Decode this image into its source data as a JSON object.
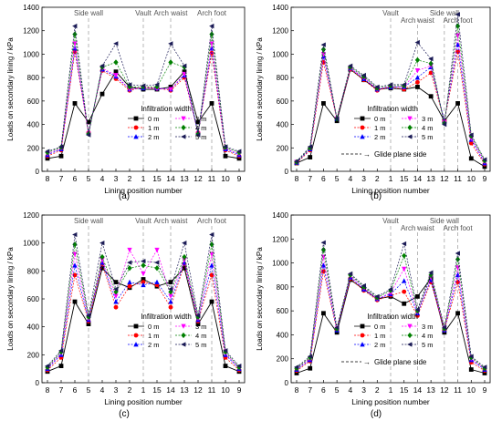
{
  "categories": [
    "8",
    "7",
    "6",
    "5",
    "4",
    "3",
    "2",
    "1",
    "15",
    "14",
    "13",
    "12",
    "11",
    "10",
    "9"
  ],
  "colors": {
    "0 m": "#000000",
    "1 m": "#ff0000",
    "2 m": "#0000ff",
    "3 m": "#ff00ff",
    "4 m": "#008000",
    "5 m": "#1a1a55"
  },
  "chart_data": [
    {
      "type": "line",
      "panel_label": "(a)",
      "xlabel": "Lining position number",
      "ylabel": "Loads on secondary lining / kPa",
      "ylim": [
        0,
        1400
      ],
      "yticks": [
        0,
        200,
        400,
        600,
        800,
        1000,
        1200,
        1400
      ],
      "categories": [
        "8",
        "7",
        "6",
        "5",
        "4",
        "3",
        "2",
        "1",
        "15",
        "14",
        "13",
        "12",
        "11",
        "10",
        "9"
      ],
      "legend_title": "Infiltration width",
      "legend_position": "bottom-center",
      "annotations": [
        {
          "text": "Side wall",
          "category": "5"
        },
        {
          "text": "Vault",
          "category": "1"
        },
        {
          "text": "Arch waist",
          "category": "14"
        },
        {
          "text": "Arch foot",
          "category": "11"
        }
      ],
      "series": [
        {
          "name": "0 m",
          "values": [
            110,
            130,
            580,
            420,
            660,
            850,
            720,
            700,
            700,
            720,
            850,
            420,
            580,
            130,
            110
          ]
        },
        {
          "name": "1 m",
          "values": [
            130,
            180,
            1020,
            330,
            860,
            790,
            690,
            720,
            710,
            690,
            800,
            330,
            1010,
            180,
            130
          ]
        },
        {
          "name": "2 m",
          "values": [
            140,
            190,
            1050,
            330,
            870,
            810,
            700,
            710,
            710,
            700,
            820,
            330,
            1050,
            190,
            140
          ]
        },
        {
          "name": "3 m",
          "values": [
            150,
            195,
            1090,
            320,
            880,
            820,
            700,
            715,
            705,
            700,
            830,
            320,
            1090,
            195,
            150
          ]
        },
        {
          "name": "4 m",
          "values": [
            160,
            205,
            1170,
            320,
            890,
            930,
            720,
            720,
            720,
            930,
            890,
            320,
            1170,
            205,
            160
          ]
        },
        {
          "name": "5 m",
          "values": [
            170,
            210,
            1240,
            310,
            900,
            1090,
            740,
            730,
            740,
            1090,
            900,
            310,
            1240,
            210,
            170
          ]
        }
      ]
    },
    {
      "type": "line",
      "panel_label": "(b)",
      "xlabel": "Lining position number",
      "ylabel": "Loads on secondary lining / kPa",
      "ylim": [
        0,
        1400
      ],
      "yticks": [
        0,
        200,
        400,
        600,
        800,
        1000,
        1200,
        1400
      ],
      "categories": [
        "8",
        "7",
        "6",
        "5",
        "4",
        "3",
        "2",
        "1",
        "15",
        "14",
        "13",
        "12",
        "11",
        "10",
        "9"
      ],
      "legend_title": "Infiltration width",
      "legend_position": "bottom-center",
      "extra_legend": "Glide plane side",
      "annotations": [
        {
          "text": "Vault",
          "category": "1"
        },
        {
          "text": "Arch waist",
          "category": "14"
        },
        {
          "text": "Side wall",
          "category": "12"
        },
        {
          "text": "Arch foot",
          "category": "11"
        }
      ],
      "series": [
        {
          "name": "0 m",
          "values": [
            70,
            120,
            580,
            430,
            870,
            780,
            700,
            710,
            700,
            720,
            640,
            430,
            580,
            110,
            40
          ]
        },
        {
          "name": "1 m",
          "values": [
            70,
            180,
            930,
            450,
            870,
            780,
            690,
            720,
            700,
            760,
            840,
            430,
            1020,
            240,
            60
          ]
        },
        {
          "name": "2 m",
          "values": [
            75,
            190,
            980,
            450,
            880,
            790,
            700,
            720,
            720,
            800,
            890,
            430,
            1080,
            270,
            70
          ]
        },
        {
          "name": "3 m",
          "values": [
            80,
            195,
            1000,
            450,
            880,
            800,
            700,
            725,
            720,
            860,
            900,
            420,
            1160,
            280,
            80
          ]
        },
        {
          "name": "4 m",
          "values": [
            80,
            200,
            1040,
            450,
            890,
            810,
            710,
            730,
            730,
            950,
            920,
            410,
            1240,
            300,
            90
          ]
        },
        {
          "name": "5 m",
          "values": [
            85,
            210,
            1080,
            450,
            900,
            820,
            720,
            740,
            740,
            1100,
            960,
            400,
            1340,
            310,
            100
          ]
        }
      ]
    },
    {
      "type": "line",
      "panel_label": "(c)",
      "xlabel": "Lining position number",
      "ylabel": "Loads on secondary lining / kPa",
      "ylim": [
        0,
        1200
      ],
      "yticks": [
        0,
        200,
        400,
        600,
        800,
        1000,
        1200
      ],
      "categories": [
        "8",
        "7",
        "6",
        "5",
        "4",
        "3",
        "2",
        "1",
        "15",
        "14",
        "13",
        "12",
        "11",
        "10",
        "9"
      ],
      "legend_title": "Infiltration width",
      "legend_position": "bottom-center",
      "annotations": [
        {
          "text": "Side wall",
          "category": "5"
        },
        {
          "text": "Vault",
          "category": "1"
        },
        {
          "text": "Arch waist",
          "category": "14"
        },
        {
          "text": "Arch foot",
          "category": "11"
        }
      ],
      "series": [
        {
          "name": "0 m",
          "values": [
            80,
            120,
            580,
            420,
            820,
            720,
            680,
            740,
            690,
            720,
            820,
            420,
            580,
            120,
            80
          ]
        },
        {
          "name": "1 m",
          "values": [
            90,
            180,
            770,
            440,
            850,
            540,
            690,
            720,
            700,
            540,
            850,
            440,
            770,
            180,
            90
          ]
        },
        {
          "name": "2 m",
          "values": [
            100,
            200,
            840,
            450,
            860,
            580,
            720,
            700,
            720,
            580,
            860,
            450,
            840,
            200,
            100
          ]
        },
        {
          "name": "3 m",
          "values": [
            105,
            210,
            920,
            460,
            880,
            620,
            950,
            780,
            950,
            620,
            880,
            460,
            920,
            210,
            105
          ]
        },
        {
          "name": "4 m",
          "values": [
            110,
            220,
            990,
            470,
            900,
            650,
            820,
            840,
            820,
            650,
            900,
            470,
            990,
            220,
            110
          ]
        },
        {
          "name": "5 m",
          "values": [
            120,
            230,
            1060,
            480,
            1000,
            670,
            860,
            870,
            860,
            670,
            1000,
            480,
            1060,
            230,
            120
          ]
        }
      ]
    },
    {
      "type": "line",
      "panel_label": "(d)",
      "xlabel": "Lining position number",
      "ylabel": "Loads on secondary lining / kPa",
      "ylim": [
        0,
        1400
      ],
      "yticks": [
        0,
        200,
        400,
        600,
        800,
        1000,
        1200,
        1400
      ],
      "categories": [
        "8",
        "7",
        "6",
        "5",
        "4",
        "3",
        "2",
        "1",
        "15",
        "14",
        "13",
        "12",
        "11",
        "10",
        "9"
      ],
      "legend_title": "Infiltration width",
      "legend_position": "bottom-center",
      "extra_legend": "Glide plane side",
      "annotations": [
        {
          "text": "Vault",
          "category": "1"
        },
        {
          "text": "Arch waist",
          "category": "14"
        },
        {
          "text": "Side wall",
          "category": "12"
        },
        {
          "text": "Arch foot",
          "category": "11"
        }
      ],
      "series": [
        {
          "name": "0 m",
          "values": [
            80,
            120,
            580,
            420,
            860,
            780,
            700,
            720,
            660,
            720,
            870,
            420,
            580,
            110,
            80
          ]
        },
        {
          "name": "1 m",
          "values": [
            100,
            180,
            930,
            440,
            870,
            770,
            690,
            730,
            760,
            560,
            840,
            440,
            840,
            170,
            100
          ]
        },
        {
          "name": "2 m",
          "values": [
            110,
            190,
            980,
            440,
            880,
            780,
            700,
            740,
            850,
            580,
            860,
            440,
            900,
            190,
            110
          ]
        },
        {
          "name": "3 m",
          "values": [
            115,
            200,
            1050,
            450,
            890,
            790,
            700,
            750,
            950,
            590,
            880,
            440,
            960,
            200,
            115
          ]
        },
        {
          "name": "4 m",
          "values": [
            120,
            210,
            1110,
            450,
            900,
            800,
            710,
            770,
            1060,
            600,
            900,
            450,
            1030,
            210,
            120
          ]
        },
        {
          "name": "5 m",
          "values": [
            130,
            220,
            1170,
            460,
            910,
            810,
            720,
            780,
            1160,
            610,
            920,
            460,
            1080,
            220,
            130
          ]
        }
      ]
    }
  ]
}
